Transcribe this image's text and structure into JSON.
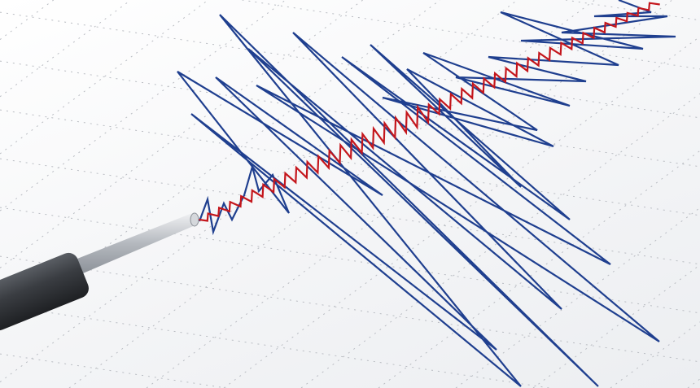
{
  "image": {
    "subject": "seismograph-recording",
    "colors": {
      "paper": "#f4f5f7",
      "grid": "#b9bcc2",
      "trace_blue": "#1f3f8f",
      "trace_red": "#c4161c",
      "pen_body": "#3a3d42",
      "pen_rod": "#c9ccd1"
    }
  }
}
